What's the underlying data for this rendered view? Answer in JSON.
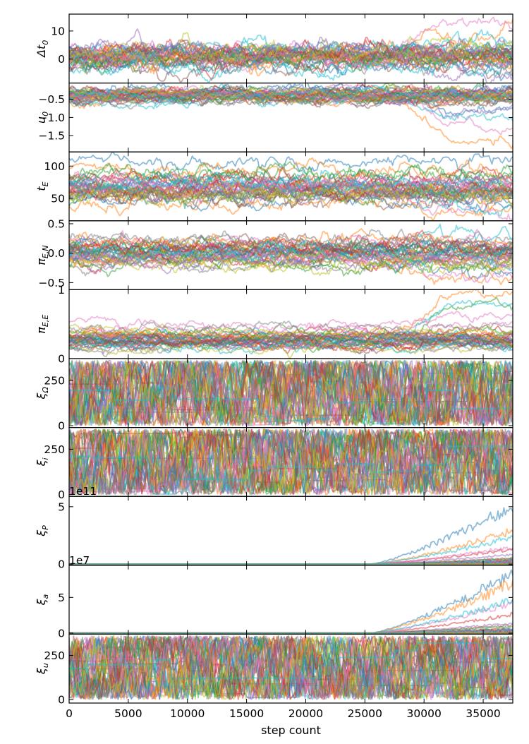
{
  "chart_data": {
    "type": "line",
    "subtype": "mcmc-trace-stack",
    "xlabel": "step count",
    "xlim": [
      0,
      37500
    ],
    "x_ticks": [
      0,
      5000,
      10000,
      15000,
      20000,
      25000,
      30000,
      35000
    ],
    "x_tick_labels": [
      "0",
      "5000",
      "10000",
      "15000",
      "20000",
      "25000",
      "30000",
      "35000"
    ],
    "n_walkers": 40,
    "walker_alpha": 0.5,
    "grid": false,
    "legend": "none",
    "palette": [
      "#1f77b4",
      "#ff7f0e",
      "#2ca02c",
      "#d62728",
      "#9467bd",
      "#8c564b",
      "#e377c2",
      "#7f7f7f",
      "#bcbd22",
      "#17becf"
    ],
    "panels": [
      {
        "key": "dt0",
        "ylabel_main": "Δt",
        "ylabel_sub": "0",
        "ylim": [
          -8.5,
          16
        ],
        "yticks": [
          0,
          10
        ],
        "ytick_labels": [
          "0",
          "10"
        ],
        "offset_label": "",
        "walker_centers": [
          2,
          1,
          0.5,
          3,
          -1,
          1.5,
          2.5,
          0,
          4,
          -2,
          1,
          2,
          0.5,
          -0.5,
          3.5,
          1,
          2,
          0,
          1.5,
          2.5,
          -1.5,
          0.5,
          1,
          3,
          2,
          -3,
          0,
          1,
          2,
          4,
          1.5,
          -0.5,
          0.5,
          2,
          3,
          1,
          0,
          2.5,
          1,
          -2.5
        ],
        "walker_spread": 2.5,
        "late_drift": {
          "start": 26000,
          "excursions": [
            [
              1,
              10
            ],
            [
              6,
              12
            ],
            [
              4,
              -6
            ],
            [
              9,
              6
            ],
            [
              0,
              -4
            ]
          ]
        }
      },
      {
        "key": "u0",
        "ylabel_main": "u",
        "ylabel_sub": "0",
        "ylim": [
          -1.95,
          -0.05
        ],
        "yticks": [
          -0.5,
          -1.0,
          -1.5
        ],
        "ytick_labels": [
          "−0.5",
          "−1.0",
          "−1.5"
        ],
        "offset_label": "",
        "walker_centers": [
          -0.35,
          -0.4,
          -0.3,
          -0.45,
          -0.5,
          -0.35,
          -0.28,
          -0.42,
          -0.38,
          -0.55,
          -0.32,
          -0.4,
          -0.3,
          -0.48,
          -0.36,
          -0.44,
          -0.3,
          -0.52,
          -0.34,
          -0.4,
          -0.26,
          -0.46,
          -0.38,
          -0.3,
          -0.42,
          -0.5,
          -0.36,
          -0.33,
          -0.41,
          -0.47,
          -0.29,
          -0.39,
          -0.43,
          -0.31,
          -0.37,
          -0.49,
          -0.35,
          -0.45,
          -0.27,
          -0.4
        ],
        "walker_spread": 0.12,
        "late_drift": {
          "start": 27000,
          "excursions": [
            [
              1,
              -1.75
            ],
            [
              6,
              -1.3
            ],
            [
              9,
              -1.0
            ],
            [
              4,
              -0.9
            ],
            [
              0,
              -0.8
            ]
          ]
        }
      },
      {
        "key": "tE",
        "ylabel_main": "t",
        "ylabel_sub": "E",
        "ylim": [
          15,
          122
        ],
        "yticks": [
          50,
          100
        ],
        "ytick_labels": [
          "50",
          "100"
        ],
        "offset_label": "",
        "walker_centers": [
          60,
          70,
          55,
          80,
          65,
          50,
          75,
          62,
          58,
          68,
          72,
          45,
          85,
          66,
          54,
          78,
          61,
          57,
          69,
          73,
          48,
          64,
          59,
          76,
          67,
          52,
          71,
          63,
          56,
          74,
          104,
          98,
          90,
          60,
          66,
          58,
          70,
          62,
          55,
          65
        ],
        "walker_spread": 10,
        "late_drift": {
          "start": 26000,
          "excursions": [
            [
              1,
              25
            ],
            [
              9,
              35
            ],
            [
              6,
              30
            ],
            [
              0,
              40
            ]
          ]
        }
      },
      {
        "key": "piEN",
        "ylabel_main": "π",
        "ylabel_sub": "E,N",
        "ylim": [
          -0.62,
          0.55
        ],
        "yticks": [
          0.5,
          0.0,
          -0.5
        ],
        "ytick_labels": [
          "0.5",
          "0.0",
          "−0.5"
        ],
        "offset_label": "",
        "walker_centers": [
          0.0,
          0.1,
          -0.1,
          0.05,
          -0.15,
          0.15,
          -0.05,
          0.2,
          -0.2,
          0.0,
          0.08,
          -0.08,
          0.12,
          -0.12,
          0.03,
          -0.03,
          0.18,
          -0.18,
          0.06,
          -0.06,
          0.1,
          -0.1,
          0.0,
          0.14,
          -0.14,
          0.04,
          -0.04,
          0.16,
          -0.16,
          0.02,
          -0.02,
          0.2,
          -0.2,
          0.09,
          -0.09,
          0.07,
          -0.07,
          0.11,
          -0.11,
          0.0
        ],
        "walker_spread": 0.1,
        "late_drift": {
          "start": 26000,
          "excursions": [
            [
              9,
              0.35
            ],
            [
              1,
              -0.5
            ],
            [
              6,
              -0.35
            ],
            [
              0,
              -0.25
            ]
          ]
        }
      },
      {
        "key": "piEE",
        "ylabel_main": "π",
        "ylabel_sub": "E,E",
        "ylim": [
          0,
          1.0
        ],
        "yticks": [
          0,
          1
        ],
        "ytick_labels": [
          "0",
          "1"
        ],
        "offset_label": "",
        "walker_centers": [
          0.25,
          0.3,
          0.2,
          0.35,
          0.28,
          0.22,
          0.4,
          0.18,
          0.33,
          0.26,
          0.3,
          0.24,
          0.38,
          0.21,
          0.29,
          0.27,
          0.32,
          0.19,
          0.36,
          0.23,
          0.31,
          0.25,
          0.28,
          0.34,
          0.2,
          0.3,
          0.26,
          0.22,
          0.37,
          0.29,
          0.24,
          0.33,
          0.27,
          0.21,
          0.3,
          0.25,
          0.5,
          0.45,
          0.15,
          0.16
        ],
        "walker_spread": 0.06,
        "late_drift": {
          "start": 27000,
          "excursions": [
            [
              1,
              0.9
            ],
            [
              9,
              0.8
            ],
            [
              6,
              0.65
            ],
            [
              2,
              0.75
            ]
          ]
        }
      },
      {
        "key": "xiOmega",
        "ylabel_main": "ξ",
        "ylabel_sub": "Ω",
        "ylim": [
          -10,
          370
        ],
        "yticks": [
          0,
          250
        ],
        "ytick_labels": [
          "0",
          "250"
        ],
        "offset_label": "",
        "uniform_walkers": true,
        "uniform_range": [
          0,
          360
        ]
      },
      {
        "key": "xii",
        "ylabel_main": "ξ",
        "ylabel_sub": "i",
        "ylim": [
          -10,
          370
        ],
        "yticks": [
          0,
          250
        ],
        "ytick_labels": [
          "0",
          "250"
        ],
        "offset_label": "",
        "uniform_walkers": true,
        "uniform_range": [
          0,
          360
        ]
      },
      {
        "key": "xiP",
        "ylabel_main": "ξ",
        "ylabel_sub": "P",
        "ylim": [
          -0.1,
          5.9
        ],
        "yticks": [
          0,
          5
        ],
        "ytick_labels": [
          "0",
          "5"
        ],
        "offset_label": "1e11",
        "flat_then_rise": true,
        "rise_start": 25500,
        "rise_walkers": [
          [
            1,
            3.1
          ],
          [
            0,
            5.5
          ],
          [
            6,
            1.6
          ],
          [
            3,
            1.4
          ],
          [
            9,
            2.5
          ],
          [
            4,
            0.9
          ],
          [
            2,
            0.5
          ],
          [
            5,
            0.6
          ]
        ]
      },
      {
        "key": "xia",
        "ylabel_main": "ξ",
        "ylabel_sub": "a",
        "ylim": [
          -0.15,
          9.5
        ],
        "yticks": [
          0,
          5
        ],
        "ytick_labels": [
          "0",
          "5"
        ],
        "offset_label": "1e7",
        "flat_then_rise": true,
        "rise_start": 25500,
        "rise_walkers": [
          [
            1,
            7.6
          ],
          [
            0,
            9.0
          ],
          [
            6,
            4.5
          ],
          [
            3,
            2.8
          ],
          [
            9,
            5.0
          ],
          [
            4,
            1.5
          ],
          [
            2,
            1.0
          ],
          [
            5,
            1.2
          ]
        ]
      },
      {
        "key": "xiu",
        "ylabel_main": "ξ",
        "ylabel_sub": "u",
        "ylim": [
          -20,
          370
        ],
        "yticks": [
          0,
          250
        ],
        "ytick_labels": [
          "0",
          "250"
        ],
        "offset_label": "",
        "uniform_walkers": true,
        "uniform_range": [
          0,
          360
        ]
      }
    ]
  }
}
